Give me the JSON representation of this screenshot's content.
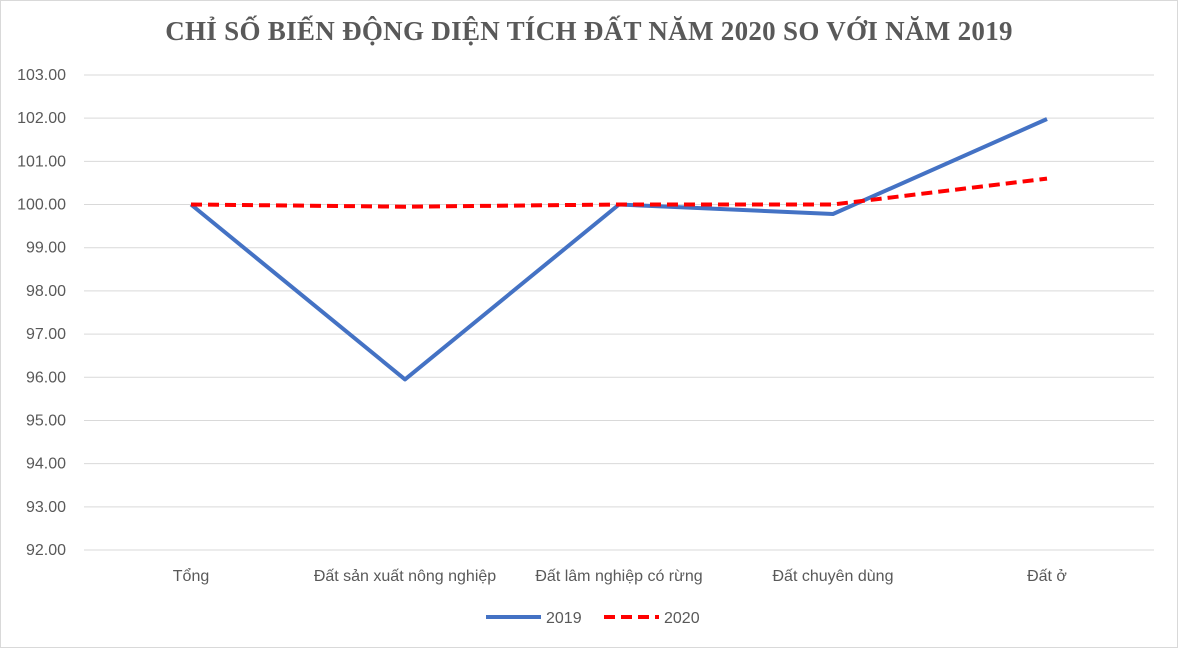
{
  "chart_data": {
    "type": "line",
    "title": "CHỈ SỐ BIẾN ĐỘNG DIỆN TÍCH ĐẤT NĂM 2020 SO VỚI NĂM 2019",
    "categories": [
      "Tổng",
      "Đất sản xuất nông nghiệp",
      "Đất lâm nghiệp có rừng",
      "Đất chuyên dùng",
      "Đất ở"
    ],
    "series": [
      {
        "name": "2019",
        "values": [
          100.0,
          95.95,
          100.0,
          99.78,
          101.98
        ],
        "color": "#4472c4",
        "dash": "solid"
      },
      {
        "name": "2020",
        "values": [
          100.0,
          99.95,
          100.0,
          100.0,
          100.6
        ],
        "color": "#ff0000",
        "dash": "dashed"
      }
    ],
    "ylim": [
      92.0,
      103.0
    ],
    "ytick_step": 1.0,
    "ytick_labels": [
      "92.00",
      "93.00",
      "94.00",
      "95.00",
      "96.00",
      "97.00",
      "98.00",
      "99.00",
      "100.00",
      "101.00",
      "102.00",
      "103.00"
    ],
    "grid": true,
    "legend_position": "bottom"
  }
}
